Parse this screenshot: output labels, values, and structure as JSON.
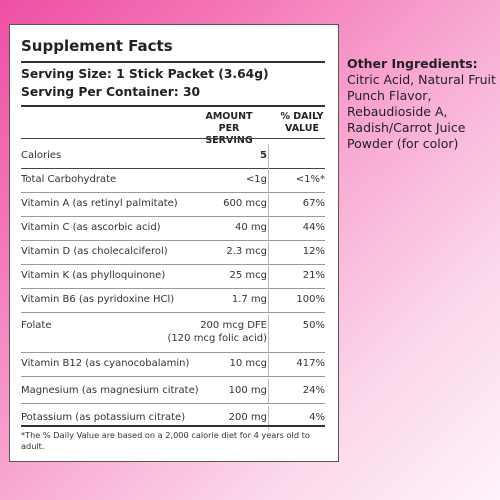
{
  "panel": {
    "title": "Supplement Facts",
    "serving_size": "Serving Size: 1 Stick Packet (3.64g)",
    "servings_per_container": "Serving Per Container: 30",
    "col_amount": "AMOUNT PER SERVING",
    "col_amount_l1": "AMOUNT",
    "col_amount_l2": "PER SERVING",
    "col_dv_l1": "% DAILY",
    "col_dv_l2": "VALUE",
    "rows": [
      {
        "label": "Calories",
        "amount": "5",
        "dv": ""
      },
      {
        "label": "Total Carbohydrate",
        "amount": "<1g",
        "dv": "<1%*"
      },
      {
        "label": "Vitamin A (as retinyl palmitate)",
        "amount": "600 mcg",
        "dv": "67%"
      },
      {
        "label": "Vitamin C (as ascorbic acid)",
        "amount": "40 mg",
        "dv": "44%"
      },
      {
        "label": "Vitamin D (as cholecalciferol)",
        "amount": "2.3 mcg",
        "dv": "12%"
      },
      {
        "label": "Vitamin K (as phylloquinone)",
        "amount": "25 mcg",
        "dv": "21%"
      },
      {
        "label": "Vitamin B6 (as pyridoxine HCl)",
        "amount": "1.7 mg",
        "dv": "100%"
      },
      {
        "label": "Folate",
        "amount": "200 mcg DFE",
        "amount2": "(120 mcg folic acid)",
        "dv": "50%"
      },
      {
        "label": "Vitamin B12 (as cyanocobalamin)",
        "amount": "10 mcg",
        "dv": "417%"
      },
      {
        "label": "Magnesium (as magnesium citrate)",
        "amount": "100 mg",
        "dv": "24%"
      },
      {
        "label": "Potassium (as potassium citrate)",
        "amount": "200 mg",
        "dv": "4%"
      }
    ],
    "footnote": "*The % Daily Value are based on a 2,000 calorie diet for 4 years old to adult."
  },
  "other_ingredients": {
    "heading": "Other Ingredients:",
    "text": "Citric Acid, Natural Fruit Punch Flavor, Rebaudioside A, Radish/Carrot Juice Powder (for color)"
  },
  "colors": {
    "background_pink": "#ee4fa3",
    "background_light": "#fff3fa",
    "panel": "#ffffff",
    "text": "#222222"
  }
}
